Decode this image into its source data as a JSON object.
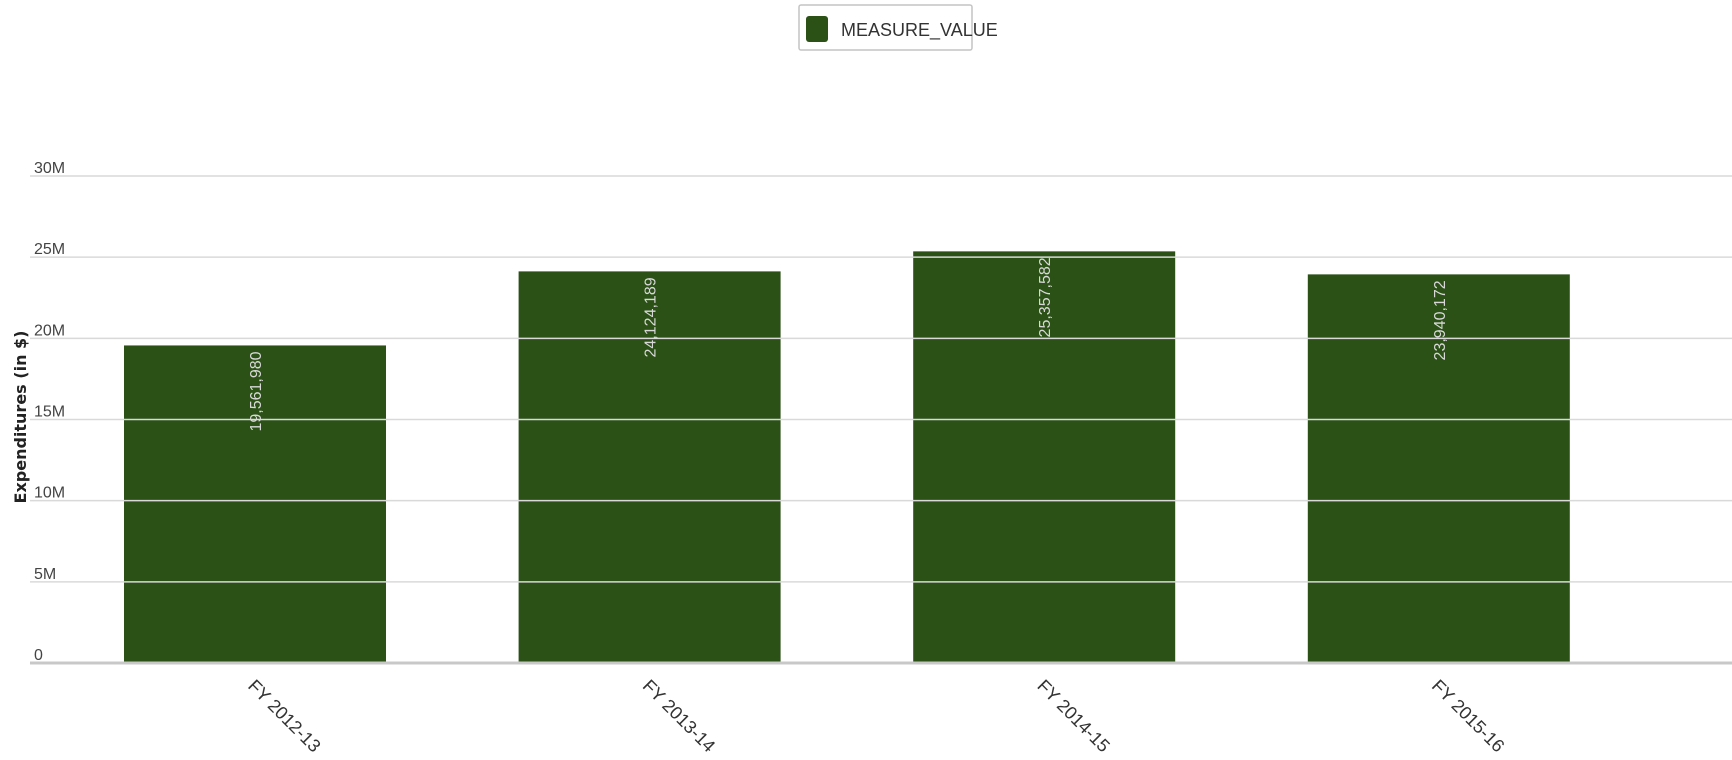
{
  "chart_data": {
    "type": "bar",
    "categories": [
      "FY 2012-13",
      "FY 2013-14",
      "FY 2014-15",
      "FY 2015-16"
    ],
    "series": [
      {
        "name": "MEASURE_VALUE",
        "values": [
          19561980,
          24124189,
          25357582,
          23940172
        ]
      }
    ],
    "data_labels": [
      "19,561,980",
      "24,124,189",
      "25,357,582",
      "23,940,172"
    ],
    "ylabel": "Expenditures (in $)",
    "xlabel": "",
    "ylim": [
      0,
      30000000
    ],
    "yticks": [
      0,
      5000000,
      10000000,
      15000000,
      20000000,
      25000000,
      30000000
    ],
    "ytick_labels": [
      "0",
      "5M",
      "10M",
      "15M",
      "20M",
      "25M",
      "30M"
    ],
    "grid": true,
    "legend_position": "top-center",
    "colors": {
      "bar": "#2b5117",
      "grid": "#d9d9d9"
    }
  }
}
